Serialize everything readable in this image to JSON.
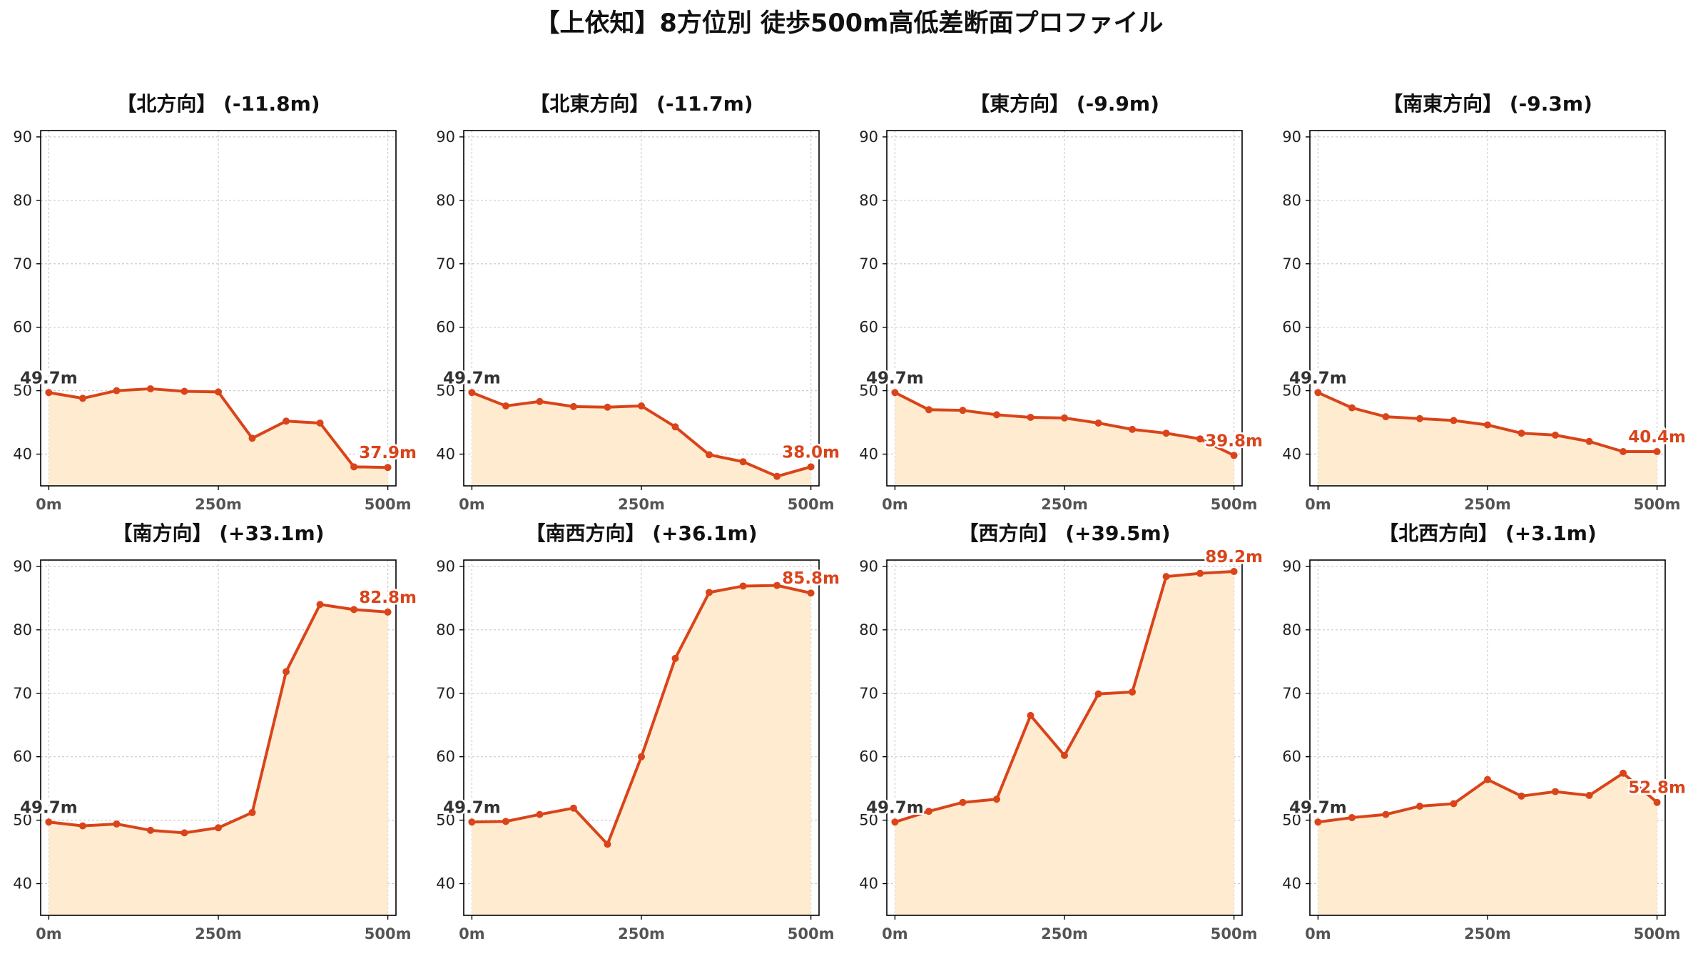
{
  "figure_title": "【上依知】8方位別 徒歩500m高低差断面プロファイル",
  "colors": {
    "line": "#d9441a",
    "fill": "#feebd0",
    "grid": "#cccccc",
    "start_label": "#333333",
    "end_label": "#d9441a"
  },
  "chart_data": [
    {
      "type": "area",
      "title": "【北方向】 (-11.8m)",
      "x": [
        0,
        50,
        100,
        150,
        200,
        250,
        300,
        350,
        400,
        450,
        500
      ],
      "values": [
        49.7,
        48.8,
        50.0,
        50.3,
        49.9,
        49.8,
        42.5,
        45.2,
        44.9,
        38.0,
        37.9
      ],
      "start_label": "49.7m",
      "end_label": "37.9m",
      "xticks": [
        "0m",
        "250m",
        "500m"
      ],
      "yticks": [
        "40",
        "50",
        "60",
        "70",
        "80",
        "90"
      ],
      "xlim": [
        -12,
        512
      ],
      "ylim": [
        35,
        91
      ],
      "grid": true
    },
    {
      "type": "area",
      "title": "【北東方向】 (-11.7m)",
      "x": [
        0,
        50,
        100,
        150,
        200,
        250,
        300,
        350,
        400,
        450,
        500
      ],
      "values": [
        49.7,
        47.6,
        48.3,
        47.5,
        47.4,
        47.6,
        44.3,
        39.9,
        38.8,
        36.5,
        38.0
      ],
      "start_label": "49.7m",
      "end_label": "38.0m",
      "xticks": [
        "0m",
        "250m",
        "500m"
      ],
      "yticks": [
        "40",
        "50",
        "60",
        "70",
        "80",
        "90"
      ],
      "xlim": [
        -12,
        512
      ],
      "ylim": [
        35,
        91
      ],
      "grid": true
    },
    {
      "type": "area",
      "title": "【東方向】 (-9.9m)",
      "x": [
        0,
        50,
        100,
        150,
        200,
        250,
        300,
        350,
        400,
        450,
        500
      ],
      "values": [
        49.7,
        47.0,
        46.9,
        46.2,
        45.8,
        45.7,
        44.9,
        43.9,
        43.3,
        42.4,
        39.8
      ],
      "start_label": "49.7m",
      "end_label": "39.8m",
      "xticks": [
        "0m",
        "250m",
        "500m"
      ],
      "yticks": [
        "40",
        "50",
        "60",
        "70",
        "80",
        "90"
      ],
      "xlim": [
        -12,
        512
      ],
      "ylim": [
        35,
        91
      ],
      "grid": true
    },
    {
      "type": "area",
      "title": "【南東方向】 (-9.3m)",
      "x": [
        0,
        50,
        100,
        150,
        200,
        250,
        300,
        350,
        400,
        450,
        500
      ],
      "values": [
        49.7,
        47.3,
        45.9,
        45.6,
        45.3,
        44.6,
        43.3,
        43.0,
        42.0,
        40.4,
        40.4
      ],
      "start_label": "49.7m",
      "end_label": "40.4m",
      "xticks": [
        "0m",
        "250m",
        "500m"
      ],
      "yticks": [
        "40",
        "50",
        "60",
        "70",
        "80",
        "90"
      ],
      "xlim": [
        -12,
        512
      ],
      "ylim": [
        35,
        91
      ],
      "grid": true
    },
    {
      "type": "area",
      "title": "【南方向】 (+33.1m)",
      "x": [
        0,
        50,
        100,
        150,
        200,
        250,
        300,
        350,
        400,
        450,
        500
      ],
      "values": [
        49.7,
        49.1,
        49.4,
        48.4,
        48.0,
        48.8,
        51.2,
        73.4,
        84.0,
        83.2,
        82.8
      ],
      "start_label": "49.7m",
      "end_label": "82.8m",
      "xticks": [
        "0m",
        "250m",
        "500m"
      ],
      "yticks": [
        "40",
        "50",
        "60",
        "70",
        "80",
        "90"
      ],
      "xlim": [
        -12,
        512
      ],
      "ylim": [
        35,
        91
      ],
      "grid": true
    },
    {
      "type": "area",
      "title": "【南西方向】 (+36.1m)",
      "x": [
        0,
        50,
        100,
        150,
        200,
        250,
        300,
        350,
        400,
        450,
        500
      ],
      "values": [
        49.7,
        49.8,
        50.9,
        51.9,
        46.2,
        60.0,
        75.5,
        85.9,
        86.9,
        87.0,
        85.8
      ],
      "start_label": "49.7m",
      "end_label": "85.8m",
      "xticks": [
        "0m",
        "250m",
        "500m"
      ],
      "yticks": [
        "40",
        "50",
        "60",
        "70",
        "80",
        "90"
      ],
      "xlim": [
        -12,
        512
      ],
      "ylim": [
        35,
        91
      ],
      "grid": true
    },
    {
      "type": "area",
      "title": "【西方向】 (+39.5m)",
      "x": [
        0,
        50,
        100,
        150,
        200,
        250,
        300,
        350,
        400,
        450,
        500
      ],
      "values": [
        49.7,
        51.4,
        52.8,
        53.3,
        66.5,
        60.2,
        69.9,
        70.2,
        88.4,
        88.9,
        89.2
      ],
      "start_label": "49.7m",
      "end_label": "89.2m",
      "xticks": [
        "0m",
        "250m",
        "500m"
      ],
      "yticks": [
        "40",
        "50",
        "60",
        "70",
        "80",
        "90"
      ],
      "xlim": [
        -12,
        512
      ],
      "ylim": [
        35,
        91
      ],
      "grid": true
    },
    {
      "type": "area",
      "title": "【北西方向】 (+3.1m)",
      "x": [
        0,
        50,
        100,
        150,
        200,
        250,
        300,
        350,
        400,
        450,
        500
      ],
      "values": [
        49.7,
        50.4,
        50.9,
        52.2,
        52.6,
        56.4,
        53.8,
        54.5,
        53.9,
        57.4,
        52.8
      ],
      "start_label": "49.7m",
      "end_label": "52.8m",
      "xticks": [
        "0m",
        "250m",
        "500m"
      ],
      "yticks": [
        "40",
        "50",
        "60",
        "70",
        "80",
        "90"
      ],
      "xlim": [
        -12,
        512
      ],
      "ylim": [
        35,
        91
      ],
      "grid": true
    }
  ]
}
